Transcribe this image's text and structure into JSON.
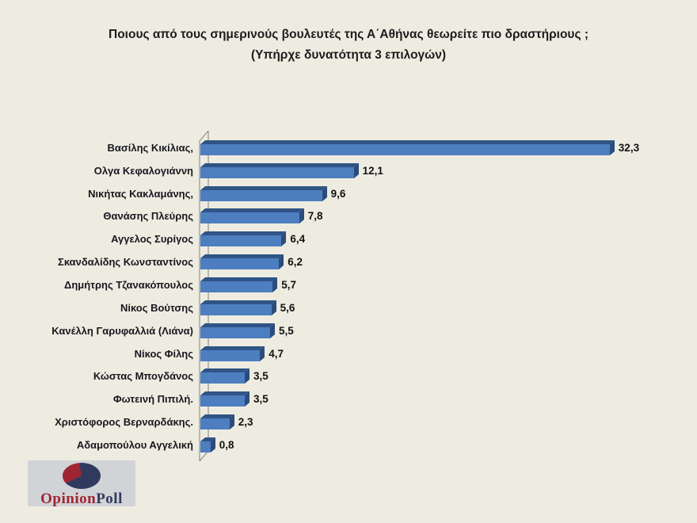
{
  "title": {
    "line1": "Ποιους από τους σημερινούς βουλευτές της Α΄Αθήνας θεωρείτε πιο δραστήριους ;",
    "line2": "(Υπήρχε δυνατότητα 3 επιλογών)"
  },
  "chart_data": {
    "type": "bar",
    "orientation": "horizontal",
    "title": "Ποιους από τους σημερινούς βουλευτές της Α΄Αθήνας θεωρείτε πιο δραστήριους ; (Υπήρχε δυνατότητα 3 επιλογών)",
    "categories": [
      "Βασίλης Κικίλιας,",
      "Ολγα Κεφαλογιάννη",
      "Νικήτας Κακλαμάνης,",
      "Θανάσης Πλεύρης",
      "Αγγελος Συρίγος",
      "Σκανδαλίδης Κωνσταντίνος",
      "Δημήτρης Τζανακόπουλος",
      "Νίκος Βούτσης",
      "Κανέλλη Γαρυφαλλιά (Λιάνα)",
      "Νίκος Φίλης",
      "Κώστας Μπογδάνος",
      "Φωτεινή Πιπιλή.",
      "Χριστόφορος Βερναρδάκης.",
      "Αδαμοπούλου Αγγελική"
    ],
    "values": [
      32.3,
      12.1,
      9.6,
      7.8,
      6.4,
      6.2,
      5.7,
      5.6,
      5.5,
      4.7,
      3.5,
      3.5,
      2.3,
      0.8
    ],
    "value_labels": [
      "32,3",
      "12,1",
      "9,6",
      "7,8",
      "6,4",
      "6,2",
      "5,7",
      "5,6",
      "5,5",
      "4,7",
      "3,5",
      "3,5",
      "2,3",
      "0,8"
    ],
    "xlabel": "",
    "ylabel": "",
    "xlim": [
      0,
      34
    ],
    "grid": false,
    "legend": false,
    "style_3d": true,
    "bar_color": "#4d7ec0",
    "bar_top_color": "#2f5486",
    "bar_cap_color": "#2b4c7c",
    "background_color": "#eeece1",
    "label_color": "#17171f"
  },
  "logo": {
    "brand_first": "Opinion",
    "brand_second": "Poll",
    "pie_red": "#9e2532",
    "pie_navy": "#2f3a5e"
  }
}
